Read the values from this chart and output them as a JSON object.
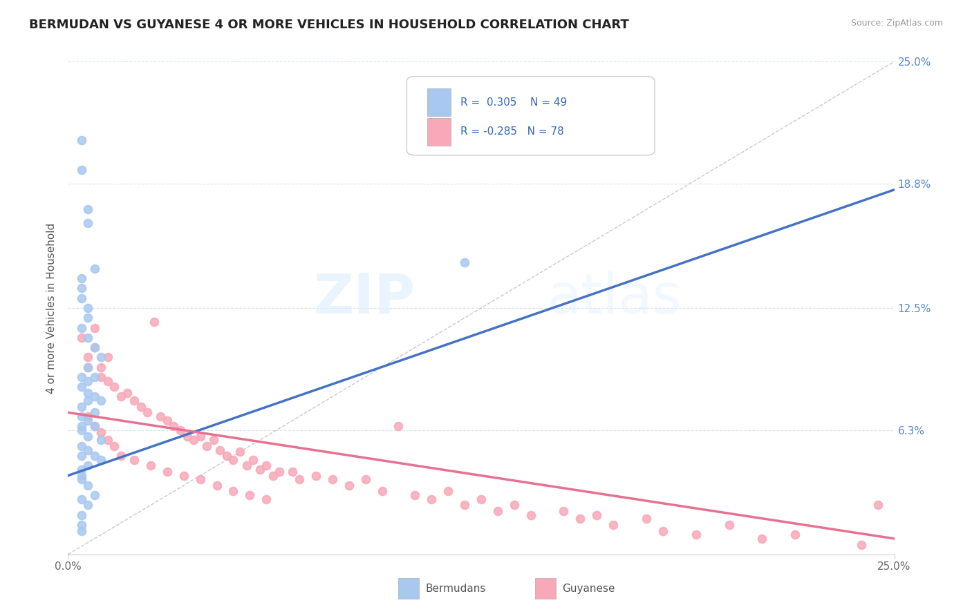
{
  "title": "BERMUDAN VS GUYANESE 4 OR MORE VEHICLES IN HOUSEHOLD CORRELATION CHART",
  "source": "Source: ZipAtlas.com",
  "ylabel": "4 or more Vehicles in Household",
  "x_min": 0.0,
  "x_max": 0.25,
  "y_min": 0.0,
  "y_max": 0.25,
  "bermudan_R": 0.305,
  "bermudan_N": 49,
  "guyanese_R": -0.285,
  "guyanese_N": 78,
  "bermudan_color": "#a8c8f0",
  "guyanese_color": "#f8a8b8",
  "bermudan_line_color": "#4472c4",
  "guyanese_line_color": "#e87090",
  "diagonal_color": "#bbbbbb",
  "legend_label_1": "Bermudans",
  "legend_label_2": "Guyanese",
  "watermark": "ZIPatlas",
  "bermudan_x": [
    0.004,
    0.004,
    0.006,
    0.006,
    0.008,
    0.004,
    0.004,
    0.004,
    0.006,
    0.006,
    0.004,
    0.006,
    0.008,
    0.01,
    0.006,
    0.008,
    0.004,
    0.006,
    0.004,
    0.006,
    0.008,
    0.01,
    0.006,
    0.004,
    0.008,
    0.004,
    0.006,
    0.008,
    0.004,
    0.004,
    0.006,
    0.01,
    0.004,
    0.006,
    0.004,
    0.008,
    0.01,
    0.006,
    0.004,
    0.004,
    0.004,
    0.006,
    0.008,
    0.004,
    0.006,
    0.004,
    0.004,
    0.12,
    0.004
  ],
  "bermudan_y": [
    0.21,
    0.195,
    0.175,
    0.168,
    0.145,
    0.14,
    0.135,
    0.13,
    0.125,
    0.12,
    0.115,
    0.11,
    0.105,
    0.1,
    0.095,
    0.09,
    0.09,
    0.088,
    0.085,
    0.082,
    0.08,
    0.078,
    0.078,
    0.075,
    0.072,
    0.07,
    0.068,
    0.065,
    0.065,
    0.063,
    0.06,
    0.058,
    0.055,
    0.053,
    0.05,
    0.05,
    0.048,
    0.045,
    0.043,
    0.04,
    0.038,
    0.035,
    0.03,
    0.028,
    0.025,
    0.02,
    0.015,
    0.148,
    0.012
  ],
  "guyanese_x": [
    0.004,
    0.006,
    0.006,
    0.008,
    0.008,
    0.01,
    0.01,
    0.012,
    0.012,
    0.014,
    0.016,
    0.018,
    0.02,
    0.022,
    0.024,
    0.026,
    0.028,
    0.03,
    0.032,
    0.034,
    0.036,
    0.038,
    0.04,
    0.042,
    0.044,
    0.046,
    0.048,
    0.05,
    0.052,
    0.054,
    0.056,
    0.058,
    0.06,
    0.062,
    0.064,
    0.068,
    0.07,
    0.075,
    0.08,
    0.085,
    0.09,
    0.095,
    0.1,
    0.105,
    0.11,
    0.115,
    0.12,
    0.125,
    0.13,
    0.135,
    0.14,
    0.15,
    0.155,
    0.16,
    0.165,
    0.175,
    0.18,
    0.19,
    0.2,
    0.21,
    0.22,
    0.24,
    0.245,
    0.006,
    0.008,
    0.01,
    0.012,
    0.014,
    0.016,
    0.02,
    0.025,
    0.03,
    0.035,
    0.04,
    0.045,
    0.05,
    0.055,
    0.06
  ],
  "guyanese_y": [
    0.11,
    0.1,
    0.095,
    0.115,
    0.105,
    0.095,
    0.09,
    0.1,
    0.088,
    0.085,
    0.08,
    0.082,
    0.078,
    0.075,
    0.072,
    0.118,
    0.07,
    0.068,
    0.065,
    0.063,
    0.06,
    0.058,
    0.06,
    0.055,
    0.058,
    0.053,
    0.05,
    0.048,
    0.052,
    0.045,
    0.048,
    0.043,
    0.045,
    0.04,
    0.042,
    0.042,
    0.038,
    0.04,
    0.038,
    0.035,
    0.038,
    0.032,
    0.065,
    0.03,
    0.028,
    0.032,
    0.025,
    0.028,
    0.022,
    0.025,
    0.02,
    0.022,
    0.018,
    0.02,
    0.015,
    0.018,
    0.012,
    0.01,
    0.015,
    0.008,
    0.01,
    0.005,
    0.025,
    0.07,
    0.065,
    0.062,
    0.058,
    0.055,
    0.05,
    0.048,
    0.045,
    0.042,
    0.04,
    0.038,
    0.035,
    0.032,
    0.03,
    0.028
  ]
}
